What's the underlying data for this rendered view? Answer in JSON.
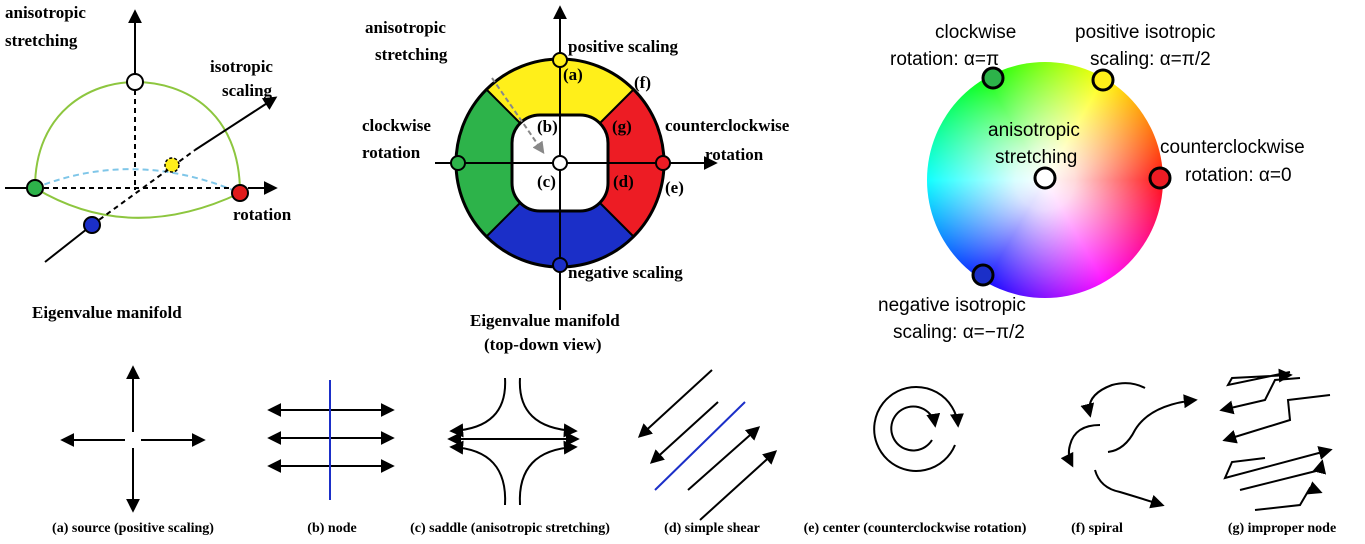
{
  "panel_3d": {
    "anisotropic": [
      "anisotropic",
      "stretching"
    ],
    "isotropic": [
      "isotropic",
      "scaling"
    ],
    "rotation": "rotation",
    "caption": "Eigenvalue manifold"
  },
  "panel_top": {
    "anisotropic": [
      "anisotropic",
      "stretching"
    ],
    "positive": "positive scaling",
    "clockwise": [
      "clockwise",
      "rotation"
    ],
    "counterclockwise": [
      "counterclockwise",
      "rotation"
    ],
    "negative": "negative scaling",
    "markers": [
      "(a)",
      "(b)",
      "(c)",
      "(d)",
      "(e)",
      "(f)",
      "(g)"
    ],
    "caption": [
      "Eigenvalue manifold",
      "(top-down view)"
    ]
  },
  "color_wheel": {
    "clockwise": [
      "clockwise",
      "rotation: α=π"
    ],
    "positive": [
      "positive isotropic",
      "scaling: α=π/2"
    ],
    "center": [
      "anisotropic",
      "stretching"
    ],
    "counterclockwise": [
      "counterclockwise",
      "rotation: α=0"
    ],
    "negative": [
      "negative isotropic",
      "scaling: α=−π/2"
    ]
  },
  "examples": [
    "(a) source (positive scaling)",
    "(b) node",
    "(c) saddle (anisotropic stretching)",
    "(d) simple shear",
    "(e) center (counterclockwise rotation)",
    "(f) spiral",
    "(g) improper node"
  ]
}
